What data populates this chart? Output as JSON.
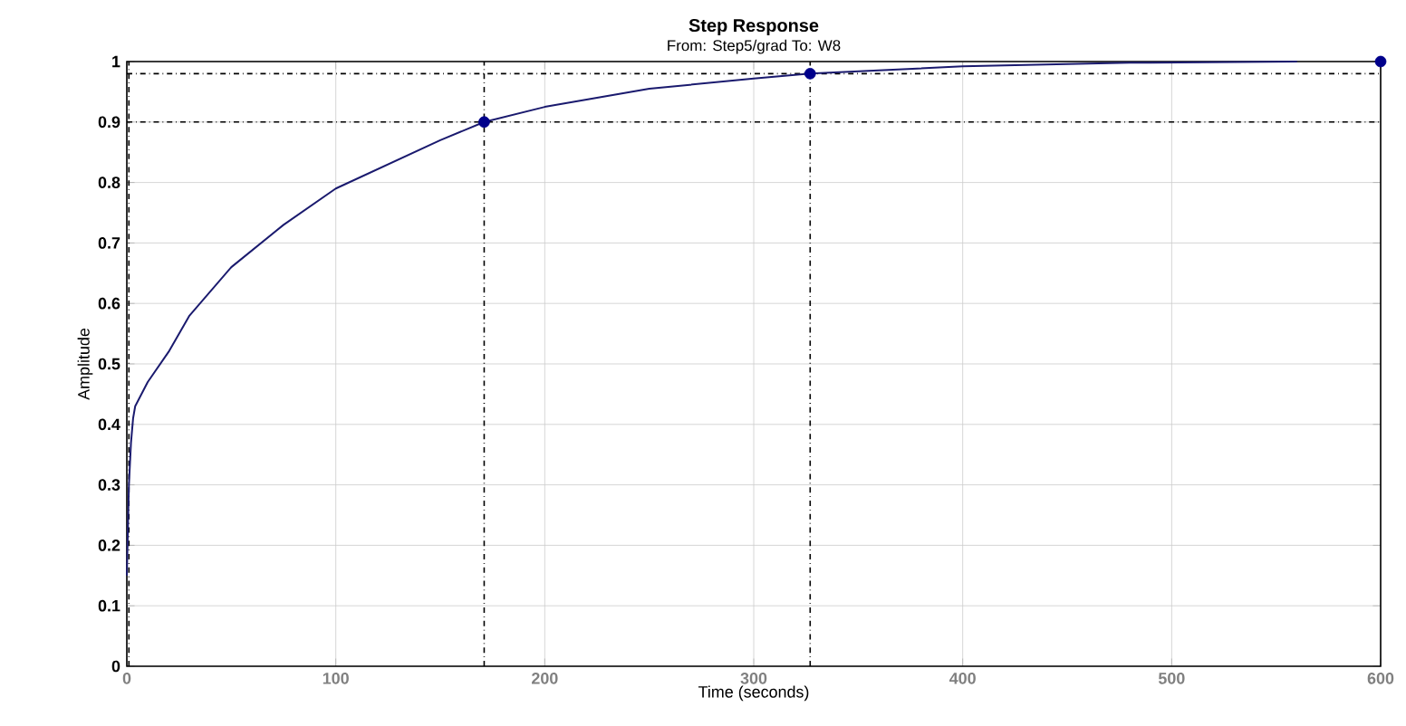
{
  "chart_data": {
    "type": "line",
    "title": "Step Response",
    "subtitle": "From: Step5/grad  To: W8",
    "xlabel": "Time (seconds)",
    "ylabel": "Amplitude",
    "xlim": [
      0,
      600
    ],
    "ylim": [
      0,
      1
    ],
    "xticks": [
      0,
      100,
      200,
      300,
      400,
      500,
      600
    ],
    "yticks": [
      0,
      0.1,
      0.2,
      0.3,
      0.4,
      0.5,
      0.6,
      0.7,
      0.8,
      0.9,
      1
    ],
    "grid": true,
    "series": [
      {
        "color": "#1a1a6e",
        "x": [
          0,
          1,
          2,
          3,
          4,
          10,
          20,
          30,
          50,
          75,
          100,
          125,
          150,
          171,
          200,
          250,
          300,
          327,
          400,
          480,
          560
        ],
        "values": [
          0.15,
          0.3,
          0.37,
          0.41,
          0.43,
          0.47,
          0.52,
          0.58,
          0.66,
          0.73,
          0.79,
          0.83,
          0.87,
          0.9,
          0.925,
          0.955,
          0.972,
          0.98,
          0.992,
          0.998,
          1.0
        ]
      },
      {
        "type": "scatter",
        "marker": "circle",
        "color": "#00008b",
        "x": [
          171,
          327,
          600
        ],
        "values": [
          0.9,
          0.98,
          1.0
        ]
      }
    ],
    "ref_lines": [
      {
        "axis": "y",
        "value": 0.9,
        "color": "#000000",
        "line_style": "dashed"
      },
      {
        "axis": "y",
        "value": 0.98,
        "color": "#000000",
        "line_style": "dashed"
      },
      {
        "axis": "x",
        "value": 1,
        "color": "#000000",
        "line_style": "dashed"
      },
      {
        "axis": "x",
        "value": 171,
        "color": "#000000",
        "line_style": "dashed"
      },
      {
        "axis": "x",
        "value": 327,
        "color": "#000000",
        "line_style": "dashed"
      }
    ]
  }
}
